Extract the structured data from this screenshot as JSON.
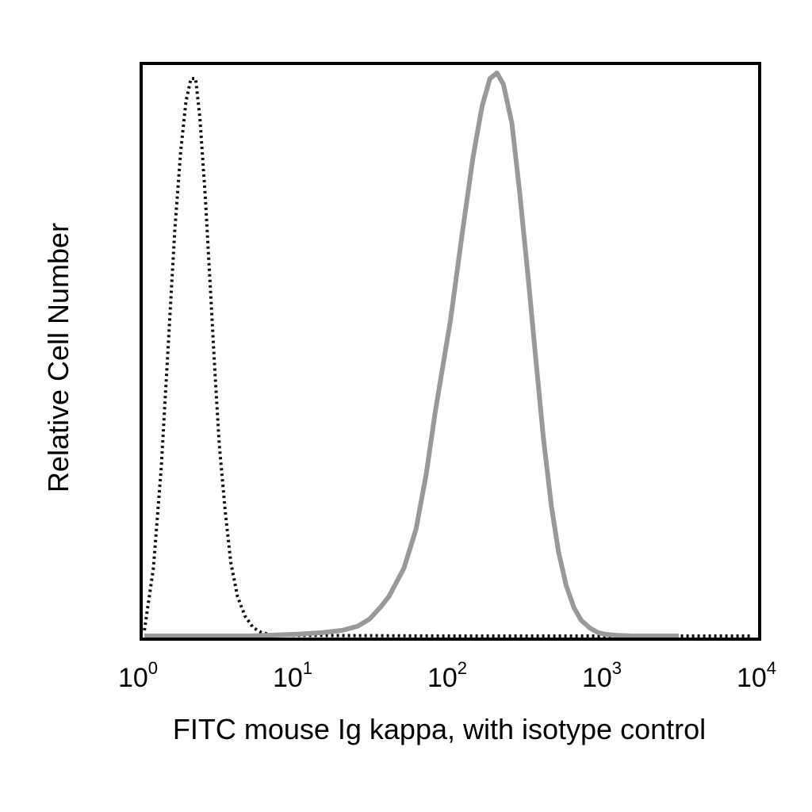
{
  "chart_data": {
    "type": "line",
    "title": "",
    "xlabel": "FITC mouse Ig kappa, with isotype control",
    "ylabel": "Relative Cell Number",
    "x_scale": "log",
    "xlim": [
      1,
      10000
    ],
    "ylim": [
      0,
      1.0
    ],
    "grid": false,
    "legend": "none",
    "x_ticks": [
      {
        "value": 1,
        "base": "10",
        "exp": "0"
      },
      {
        "value": 10,
        "base": "10",
        "exp": "1"
      },
      {
        "value": 100,
        "base": "10",
        "exp": "2"
      },
      {
        "value": 1000,
        "base": "10",
        "exp": "3"
      },
      {
        "value": 10000,
        "base": "10",
        "exp": "4"
      }
    ],
    "series": [
      {
        "style": "dotted",
        "color": "#111111",
        "x": [
          1.05,
          1.2,
          1.35,
          1.5,
          1.65,
          1.8,
          1.95,
          2.1,
          2.25,
          2.4,
          2.6,
          2.8,
          3.0,
          3.2,
          3.5,
          3.8,
          4.2,
          4.7,
          5.3,
          6.0,
          7.0,
          10,
          100,
          1000,
          9000
        ],
        "y": [
          0.01,
          0.12,
          0.3,
          0.52,
          0.72,
          0.86,
          0.95,
          0.99,
          0.99,
          0.92,
          0.78,
          0.62,
          0.47,
          0.34,
          0.22,
          0.13,
          0.07,
          0.035,
          0.015,
          0.006,
          0.002,
          0.001,
          0.0,
          0.0,
          0.0
        ]
      },
      {
        "style": "solid",
        "color": "#999999",
        "x": [
          1.05,
          5,
          10,
          15,
          20,
          25,
          30,
          35,
          40,
          50,
          60,
          70,
          80,
          100,
          120,
          140,
          160,
          180,
          200,
          220,
          250,
          280,
          320,
          360,
          400,
          450,
          500,
          560,
          630,
          700,
          800,
          900,
          1000,
          1200,
          1500,
          2000,
          3000
        ],
        "y": [
          0.0,
          0.0,
          0.003,
          0.006,
          0.01,
          0.017,
          0.03,
          0.05,
          0.07,
          0.12,
          0.19,
          0.29,
          0.4,
          0.56,
          0.72,
          0.85,
          0.94,
          0.99,
          1.0,
          0.98,
          0.91,
          0.79,
          0.63,
          0.48,
          0.35,
          0.23,
          0.15,
          0.09,
          0.05,
          0.028,
          0.014,
          0.006,
          0.003,
          0.001,
          0.0,
          0.0,
          0.0
        ]
      }
    ]
  }
}
